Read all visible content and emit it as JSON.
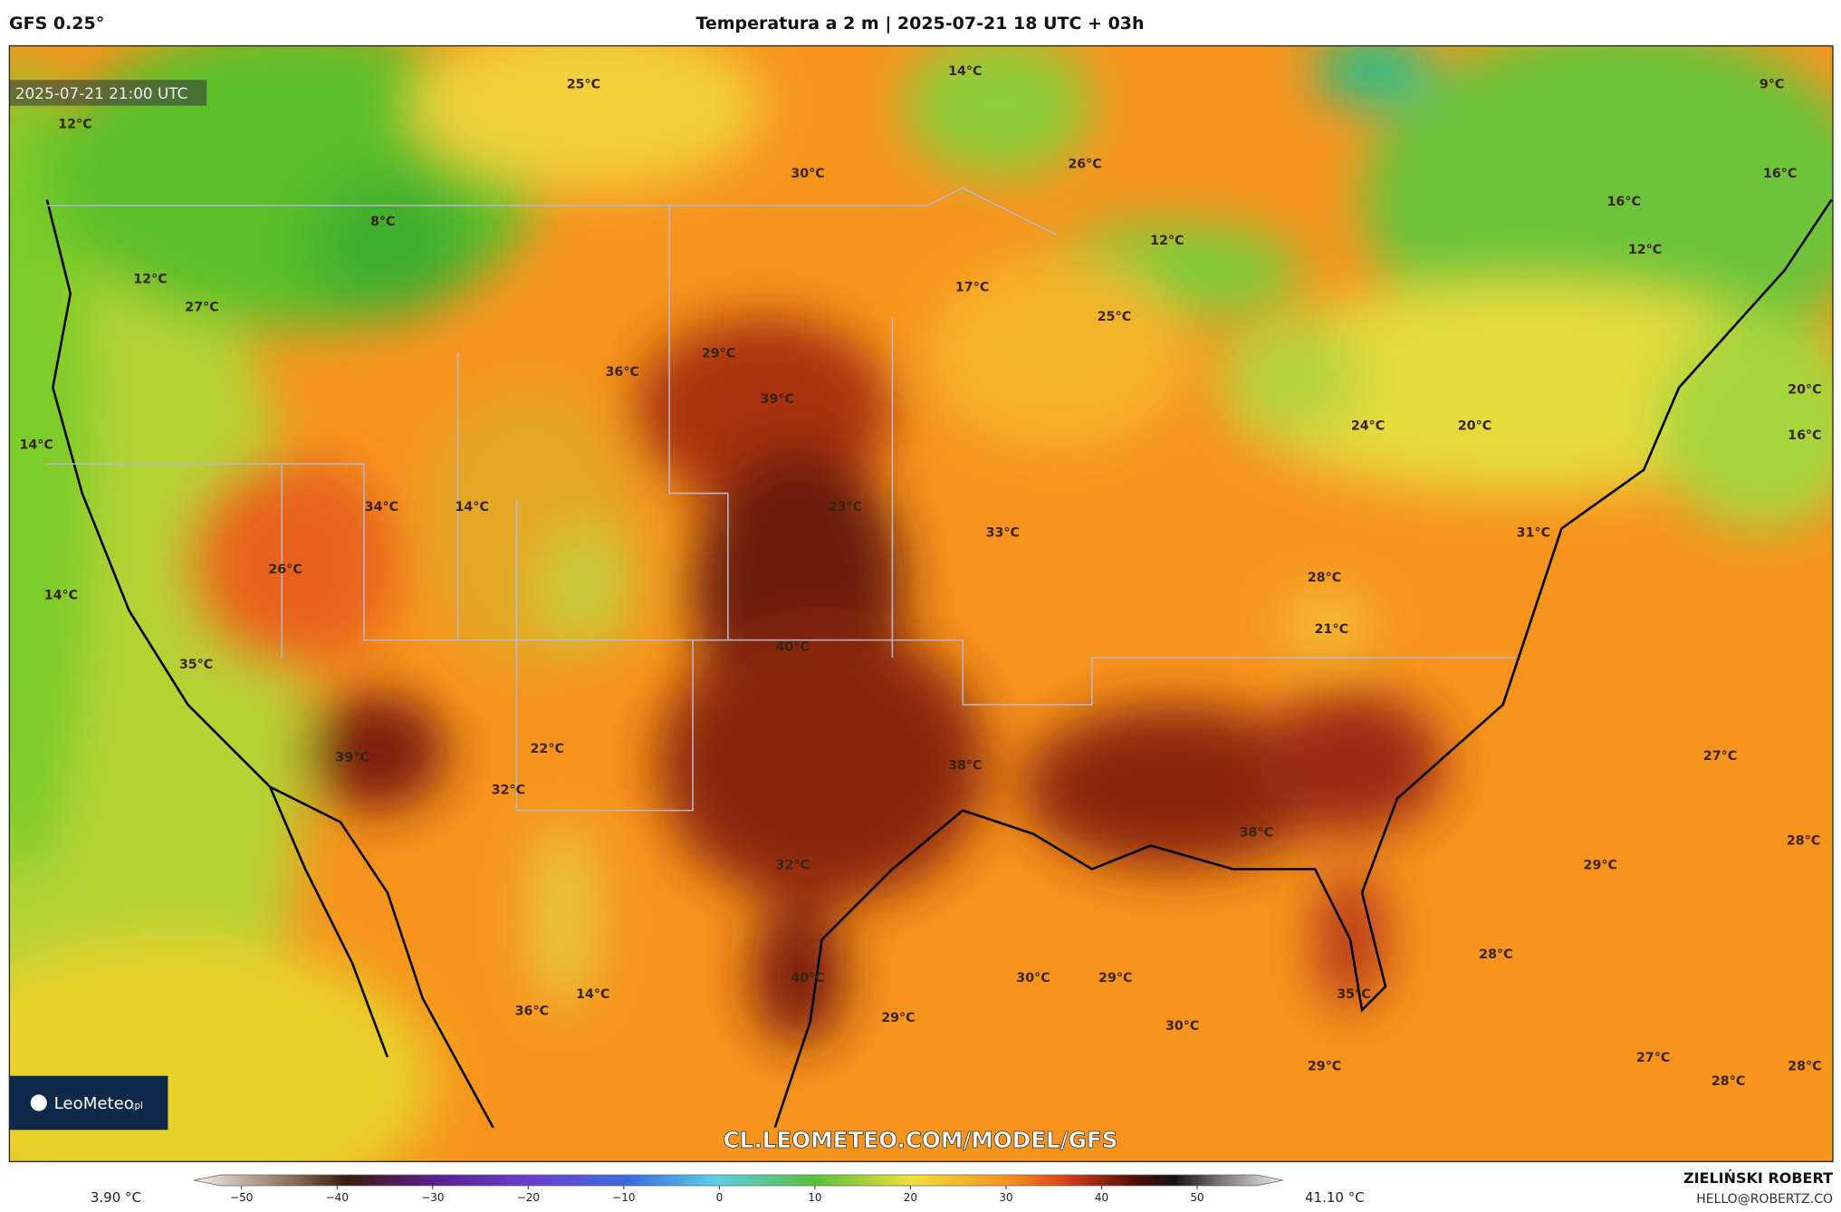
{
  "header": {
    "model": "GFS 0.25°",
    "title": "Temperatura a 2 m | 2025-07-21 18 UTC + 03h"
  },
  "map": {
    "timestamp": "2025-07-21 21:00 UTC",
    "watermark": "CL.LEOMETEO.COM/MODEL/GFS",
    "logo": {
      "name": "LeoMeteo",
      "suffix": ".pl"
    },
    "labels": [
      "25°C",
      "14°C",
      "9°C",
      "12°C",
      "30°C",
      "26°C",
      "16°C",
      "8°C",
      "16°C",
      "12°C",
      "12°C",
      "12°C",
      "27°C",
      "17°C",
      "25°C",
      "29°C",
      "36°C",
      "39°C",
      "20°C",
      "14°C",
      "24°C",
      "20°C",
      "16°C",
      "34°C",
      "14°C",
      "23°C",
      "33°C",
      "31°C",
      "26°C",
      "14°C",
      "28°C",
      "21°C",
      "40°C",
      "35°C",
      "27°C",
      "22°C",
      "39°C",
      "38°C",
      "32°C",
      "38°C",
      "28°C",
      "32°C",
      "29°C",
      "28°C",
      "40°C",
      "30°C",
      "29°C",
      "14°C",
      "35°C",
      "36°C",
      "29°C",
      "30°C",
      "27°C",
      "29°C",
      "28°C",
      "28°C"
    ]
  },
  "colorbar": {
    "min_label": "3.90 °C",
    "max_label": "41.10 °C",
    "lim": [
      -55,
      59
    ],
    "ticks": [
      {
        "value": -50,
        "label": "−50"
      },
      {
        "value": -40,
        "label": "−40"
      },
      {
        "value": -30,
        "label": "−30"
      },
      {
        "value": -20,
        "label": "−20"
      },
      {
        "value": -10,
        "label": "−10"
      },
      0,
      10,
      20,
      30,
      40,
      50
    ]
  },
  "footer": {
    "author": "ZIELIŃSKI ROBERT",
    "email": "HELLO@ROBERTZ.CO"
  }
}
